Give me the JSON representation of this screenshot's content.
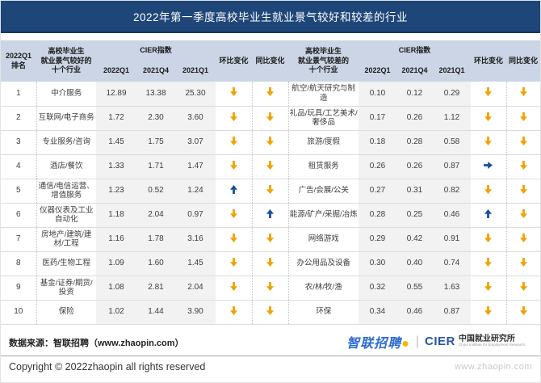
{
  "colors": {
    "title_bar_bg": "#1E4679",
    "header_bg": "#CBD5E5",
    "value_column_bg": "#F2F2F2",
    "arrow_down": "#F0A202",
    "arrow_up": "#1B4F9E",
    "zhaopin_blue": "#2B6BD4"
  },
  "chart_data": {
    "type": "table",
    "title": "2022年第一季度高校毕业生就业景气较好和较差的行业",
    "headers": {
      "rank": "2022Q1\n排名",
      "good_industries": "高校毕业生\n就业景气较好的\n十个行业",
      "bad_industries": "高校毕业生\n就业景气较差的\n十个行业",
      "cier_index": "CIER指数",
      "quarters": [
        "2022Q1",
        "2021Q4",
        "2021Q1"
      ],
      "mom_change": "环比变化",
      "yoy_change": "同比变化"
    },
    "rows": [
      {
        "rank": "1",
        "good": {
          "industry": "中介服务",
          "cier_2022q1": "12.89",
          "cier_2021q4": "13.38",
          "cier_2021q1": "25.30",
          "mom": "down",
          "yoy": "down"
        },
        "bad": {
          "industry": "航空/航天研究与制造",
          "cier_2022q1": "0.10",
          "cier_2021q4": "0.12",
          "cier_2021q1": "0.29",
          "mom": "down",
          "yoy": "down"
        }
      },
      {
        "rank": "2",
        "good": {
          "industry": "互联网/电子商务",
          "cier_2022q1": "1.72",
          "cier_2021q4": "2.30",
          "cier_2021q1": "3.60",
          "mom": "down",
          "yoy": "down"
        },
        "bad": {
          "industry": "礼品/玩具/工艺美术/奢侈品",
          "cier_2022q1": "0.17",
          "cier_2021q4": "0.26",
          "cier_2021q1": "1.12",
          "mom": "down",
          "yoy": "down"
        }
      },
      {
        "rank": "3",
        "good": {
          "industry": "专业服务/咨询",
          "cier_2022q1": "1.45",
          "cier_2021q4": "1.75",
          "cier_2021q1": "3.07",
          "mom": "down",
          "yoy": "down"
        },
        "bad": {
          "industry": "旅游/度假",
          "cier_2022q1": "0.18",
          "cier_2021q4": "0.28",
          "cier_2021q1": "0.58",
          "mom": "down",
          "yoy": "down"
        }
      },
      {
        "rank": "4",
        "good": {
          "industry": "酒店/餐饮",
          "cier_2022q1": "1.33",
          "cier_2021q4": "1.71",
          "cier_2021q1": "1.47",
          "mom": "down",
          "yoy": "down"
        },
        "bad": {
          "industry": "租赁服务",
          "cier_2022q1": "0.26",
          "cier_2021q4": "0.26",
          "cier_2021q1": "0.87",
          "mom": "flat",
          "yoy": "down"
        }
      },
      {
        "rank": "5",
        "good": {
          "industry": "通信/电信运营、增值服务",
          "cier_2022q1": "1.23",
          "cier_2021q4": "0.52",
          "cier_2021q1": "1.24",
          "mom": "up",
          "yoy": "down"
        },
        "bad": {
          "industry": "广告/会展/公关",
          "cier_2022q1": "0.27",
          "cier_2021q4": "0.31",
          "cier_2021q1": "0.82",
          "mom": "down",
          "yoy": "down"
        }
      },
      {
        "rank": "6",
        "good": {
          "industry": "仪器仪表及工业自动化",
          "cier_2022q1": "1.18",
          "cier_2021q4": "2.04",
          "cier_2021q1": "0.97",
          "mom": "down",
          "yoy": "up"
        },
        "bad": {
          "industry": "能源/矿产/采掘/冶炼",
          "cier_2022q1": "0.28",
          "cier_2021q4": "0.25",
          "cier_2021q1": "0.46",
          "mom": "up",
          "yoy": "down"
        }
      },
      {
        "rank": "7",
        "good": {
          "industry": "房地产/建筑/建材/工程",
          "cier_2022q1": "1.16",
          "cier_2021q4": "1.78",
          "cier_2021q1": "3.16",
          "mom": "down",
          "yoy": "down"
        },
        "bad": {
          "industry": "网络游戏",
          "cier_2022q1": "0.29",
          "cier_2021q4": "0.42",
          "cier_2021q1": "0.91",
          "mom": "down",
          "yoy": "down"
        }
      },
      {
        "rank": "8",
        "good": {
          "industry": "医药/生物工程",
          "cier_2022q1": "1.09",
          "cier_2021q4": "1.60",
          "cier_2021q1": "1.45",
          "mom": "down",
          "yoy": "down"
        },
        "bad": {
          "industry": "办公用品及设备",
          "cier_2022q1": "0.30",
          "cier_2021q4": "0.40",
          "cier_2021q1": "0.74",
          "mom": "down",
          "yoy": "down"
        }
      },
      {
        "rank": "9",
        "good": {
          "industry": "基金/证券/期货/投资",
          "cier_2022q1": "1.08",
          "cier_2021q4": "2.81",
          "cier_2021q1": "2.04",
          "mom": "down",
          "yoy": "down"
        },
        "bad": {
          "industry": "农/林/牧/渔",
          "cier_2022q1": "0.32",
          "cier_2021q4": "0.55",
          "cier_2021q1": "1.63",
          "mom": "down",
          "yoy": "down"
        }
      },
      {
        "rank": "10",
        "good": {
          "industry": "保险",
          "cier_2022q1": "1.02",
          "cier_2021q4": "1.44",
          "cier_2021q1": "3.90",
          "mom": "down",
          "yoy": "down"
        },
        "bad": {
          "industry": "环保",
          "cier_2022q1": "0.34",
          "cier_2021q4": "0.46",
          "cier_2021q1": "0.87",
          "mom": "down",
          "yoy": "down"
        }
      }
    ]
  },
  "footer": {
    "source": "数据来源：智联招聘（www.zhaopin.com）",
    "copyright": "Copyright © 2022zhaopin all rights reserved",
    "watermark": "www.zhaopin.com"
  },
  "logos": {
    "zhaopin": "智联招聘",
    "separator": "|",
    "cier_acronym": "CIER",
    "cier_name": "中国就业研究所",
    "cier_subtitle": "China Institute for Employment Research"
  }
}
